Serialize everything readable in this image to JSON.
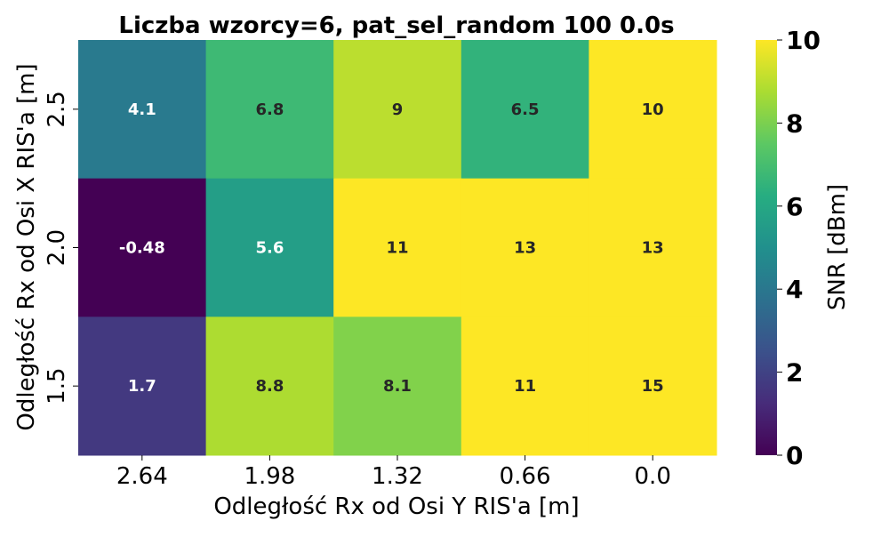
{
  "chart_data": {
    "type": "heatmap",
    "title": "Liczba wzorcy=6, pat_sel_random 100 0.0s",
    "xlabel": "Odległość Rx od Osi Y RIS'a [m]",
    "ylabel": "Odległość Rx od Osi X RIS'a [m]",
    "x_categories": [
      "2.64",
      "1.98",
      "1.32",
      "0.66",
      "0.0"
    ],
    "y_categories": [
      "2.5",
      "2.0",
      "1.5"
    ],
    "values": [
      [
        4.1,
        6.8,
        9,
        6.5,
        10
      ],
      [
        -0.48,
        5.6,
        11,
        13,
        13
      ],
      [
        1.7,
        8.8,
        8.1,
        11,
        15
      ]
    ],
    "value_labels": [
      [
        "4.1",
        "6.8",
        "9",
        "6.5",
        "10"
      ],
      [
        "-0.48",
        "5.6",
        "11",
        "13",
        "13"
      ],
      [
        "1.7",
        "8.8",
        "8.1",
        "11",
        "15"
      ]
    ],
    "colorbar": {
      "label": "SNR [dBm]",
      "range": [
        0,
        10
      ],
      "ticks": [
        "0",
        "2",
        "4",
        "6",
        "8",
        "10"
      ],
      "colormap": "viridis"
    }
  }
}
